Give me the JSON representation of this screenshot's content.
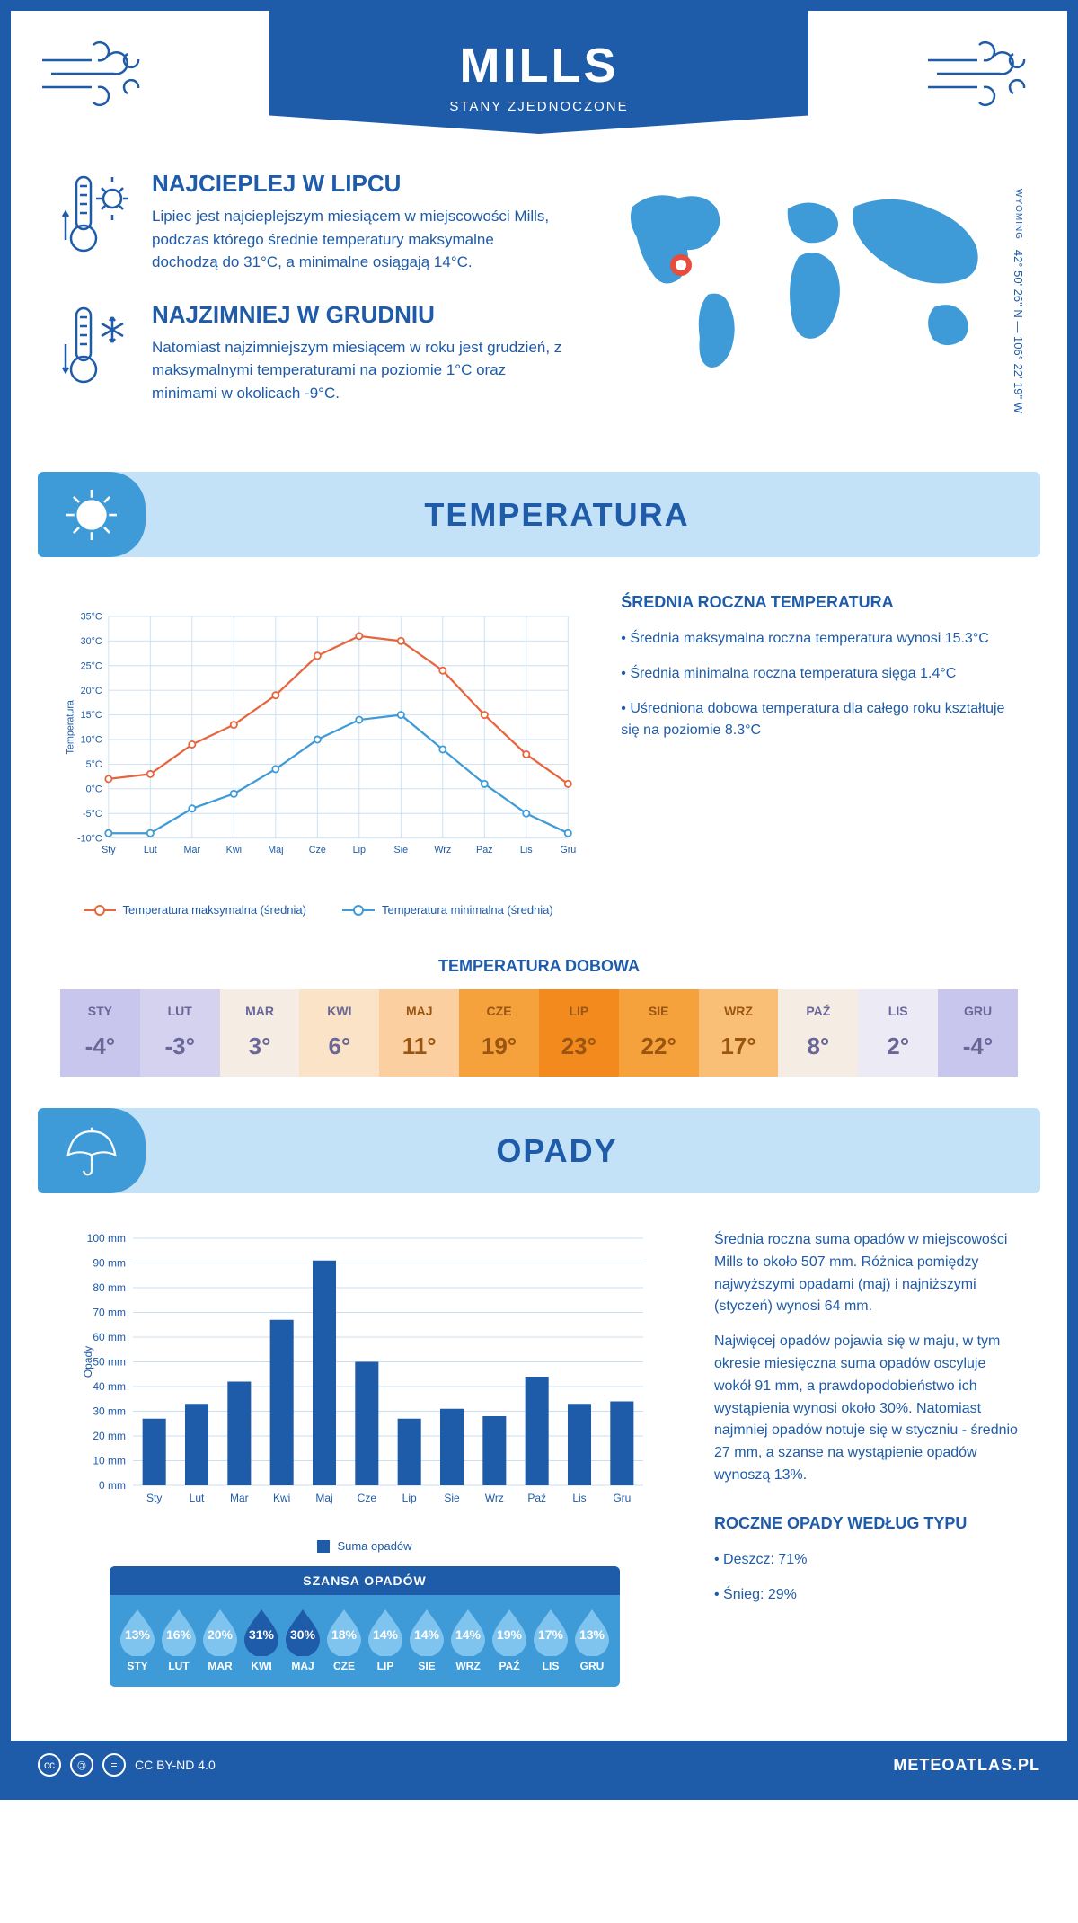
{
  "header": {
    "city": "MILLS",
    "country": "STANY ZJEDNOCZONE"
  },
  "coords": {
    "lat": "42° 50' 26\" N",
    "lon": "106° 22' 19\" W",
    "region": "WYOMING"
  },
  "facts": {
    "hot": {
      "title": "NAJCIEPLEJ W LIPCU",
      "text": "Lipiec jest najcieplejszym miesiącem w miejscowości Mills, podczas którego średnie temperatury maksymalne dochodzą do 31°C, a minimalne osiągają 14°C."
    },
    "cold": {
      "title": "NAJZIMNIEJ W GRUDNIU",
      "text": "Natomiast najzimniejszym miesiącem w roku jest grudzień, z maksymalnymi temperaturami na poziomie 1°C oraz minimami w okolicach -9°C."
    }
  },
  "months_short": [
    "Sty",
    "Lut",
    "Mar",
    "Kwi",
    "Maj",
    "Cze",
    "Lip",
    "Sie",
    "Wrz",
    "Paź",
    "Lis",
    "Gru"
  ],
  "months_upper": [
    "STY",
    "LUT",
    "MAR",
    "KWI",
    "MAJ",
    "CZE",
    "LIP",
    "SIE",
    "WRZ",
    "PAŹ",
    "LIS",
    "GRU"
  ],
  "section_temp": {
    "title": "TEMPERATURA",
    "chart": {
      "ylabel": "Temperatura",
      "ymin": -10,
      "ymax": 35,
      "ytick_step": 5,
      "ytick_suffix": "°C",
      "grid_color": "#c9dff2",
      "series": [
        {
          "name": "Temperatura maksymalna (średnia)",
          "color": "#e8643c",
          "values": [
            2,
            3,
            9,
            13,
            19,
            27,
            31,
            30,
            24,
            15,
            7,
            1
          ]
        },
        {
          "name": "Temperatura minimalna (średnia)",
          "color": "#3f9ad8",
          "values": [
            -9,
            -9,
            -4,
            -1,
            4,
            10,
            14,
            15,
            8,
            1,
            -5,
            -9
          ]
        }
      ]
    },
    "summary": {
      "heading": "ŚREDNIA ROCZNA TEMPERATURA",
      "items": [
        "• Średnia maksymalna roczna temperatura wynosi 15.3°C",
        "• Średnia minimalna roczna temperatura sięga 1.4°C",
        "• Uśredniona dobowa temperatura dla całego roku kształtuje się na poziomie 8.3°C"
      ]
    },
    "daily": {
      "title": "TEMPERATURA DOBOWA",
      "values": [
        -4,
        -3,
        3,
        6,
        11,
        19,
        23,
        22,
        17,
        8,
        2,
        -4
      ],
      "colors": [
        "#c8c6ec",
        "#d4d2ef",
        "#f5ede3",
        "#fbe3c8",
        "#fbcfa0",
        "#f6a23c",
        "#f28a1e",
        "#f6a23c",
        "#f9bf76",
        "#f5ede3",
        "#eceaf5",
        "#c8c6ec"
      ],
      "text_color": "#6a6798"
    }
  },
  "section_precip": {
    "title": "OPADY",
    "chart": {
      "ylabel": "Opady",
      "ymin": 0,
      "ymax": 100,
      "ytick_step": 10,
      "ytick_suffix": " mm",
      "bar_color": "#1e5ba8",
      "grid_color": "#c9dff2",
      "legend": "Suma opadów",
      "values": [
        27,
        33,
        42,
        67,
        91,
        50,
        27,
        31,
        28,
        44,
        33,
        34
      ]
    },
    "paragraphs": [
      "Średnia roczna suma opadów w miejscowości Mills to około 507 mm. Różnica pomiędzy najwyższymi opadami (maj) i najniższymi (styczeń) wynosi 64 mm.",
      "Najwięcej opadów pojawia się w maju, w tym okresie miesięczna suma opadów oscyluje wokół 91 mm, a prawdopodobieństwo ich wystąpienia wynosi około 30%. Natomiast najmniej opadów notuje się w styczniu - średnio 27 mm, a szanse na wystąpienie opadów wynoszą 13%."
    ],
    "type_heading": "ROCZNE OPADY WEDŁUG TYPU",
    "by_type": [
      "• Deszcz: 71%",
      "• Śnieg: 29%"
    ],
    "chance": {
      "title": "SZANSA OPADÓW",
      "values": [
        13,
        16,
        20,
        31,
        30,
        18,
        14,
        14,
        14,
        19,
        17,
        13
      ],
      "light_fill": "#7fc4ee",
      "dark_fill": "#1e5ba8",
      "threshold": 25
    }
  },
  "footer": {
    "license": "CC BY-ND 4.0",
    "site": "METEOATLAS.PL"
  }
}
